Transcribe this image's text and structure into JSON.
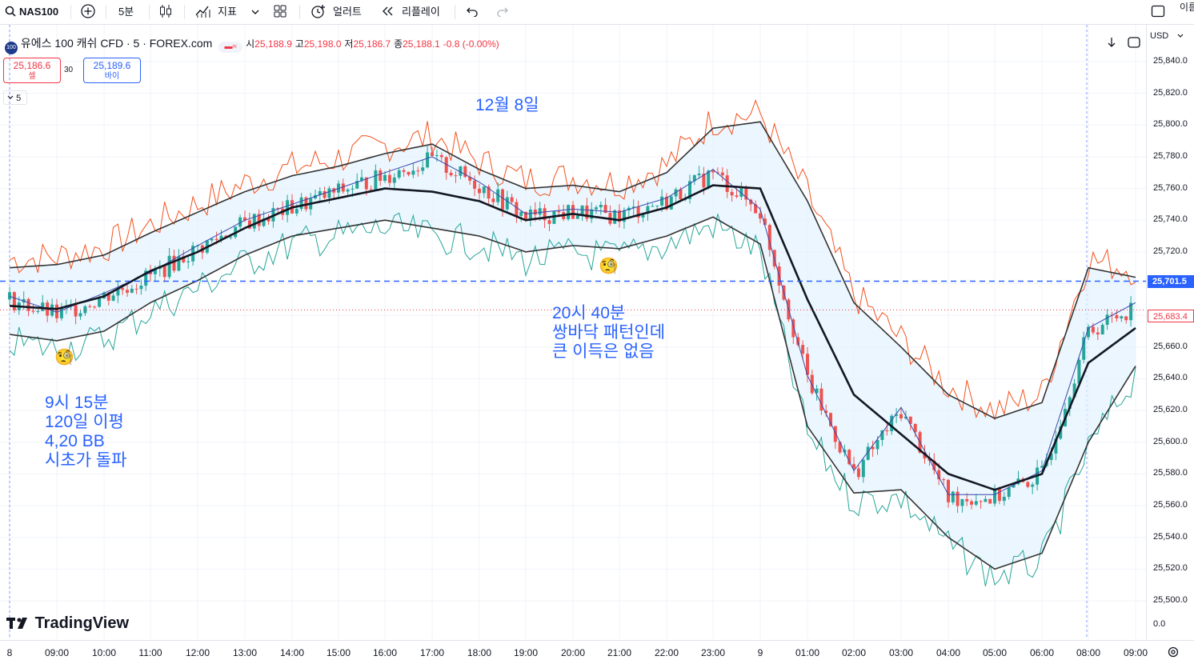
{
  "toolbar": {
    "symbol": "NAS100",
    "interval": "5분",
    "indicators_label": "지표",
    "alert_label": "얼러트",
    "replay_label": "리플레이",
    "right_cut_label": "이름"
  },
  "legend": {
    "title": "유에스 100 캐쉬 CFD · 5 · FOREX.com",
    "open_label": "시",
    "open": "25,188.9",
    "high_label": "고",
    "high": "25,198.0",
    "low_label": "저",
    "low": "25,186.7",
    "close_label": "종",
    "close": "25,188.1",
    "change": "-0.8 (-0.00%)",
    "sell_price": "25,186.6",
    "sell_label": "셀",
    "spread": "30",
    "buy_price": "25,189.6",
    "buy_label": "바이",
    "collapse_count": "5"
  },
  "price_axis": {
    "currency": "USD",
    "labels": [
      "25,840.0",
      "25,820.0",
      "25,800.0",
      "25,780.0",
      "25,760.0",
      "25,740.0",
      "25,720.0",
      "25,700.0",
      "25,680.0",
      "25,660.0",
      "25,640.0",
      "25,620.0",
      "25,600.0",
      "25,580.0",
      "25,560.0",
      "25,540.0",
      "25,520.0",
      "25,500.0",
      "0.0"
    ],
    "horizontal_line_badge": "25,701.5",
    "last_price_badge": "25,683.4"
  },
  "time_axis": {
    "labels": [
      "8",
      "09:00",
      "10:00",
      "11:00",
      "12:00",
      "13:00",
      "14:00",
      "15:00",
      "16:00",
      "17:00",
      "18:00",
      "19:00",
      "20:00",
      "21:00",
      "22:00",
      "23:00",
      "9",
      "01:00",
      "02:00",
      "03:00",
      "04:00",
      "05:00",
      "06:00",
      "08:00",
      "09:00"
    ]
  },
  "annotations": {
    "date_note": "12월 8일",
    "note_1": "9시 15분\n120일 이평\n4,20 BB\n시초가 돌파",
    "note_2": "20시 40분\n쌍바닥 패턴인데\n큰 이득은 없음"
  },
  "brand": "TradingView",
  "colors": {
    "up": "#26a69a",
    "down": "#ef5350",
    "accent": "#2962ff",
    "bb_fill": "#e3f2fd",
    "ma": "#131722"
  },
  "chart_data": {
    "type": "line",
    "title": "유에스 100 캐쉬 CFD · 5 · FOREX.com",
    "ylim": [
      25490,
      25850
    ],
    "x": [
      "08:00",
      "09:00",
      "10:00",
      "11:00",
      "12:00",
      "13:00",
      "14:00",
      "15:00",
      "16:00",
      "17:00",
      "18:00",
      "19:00",
      "20:00",
      "21:00",
      "22:00",
      "23:00",
      "00:00",
      "01:00",
      "02:00",
      "03:00",
      "04:00",
      "05:00",
      "06:00",
      "08:00",
      "09:00"
    ],
    "series": [
      {
        "values": [
          25690,
          25680,
          25692,
          25705,
          25722,
          25738,
          25748,
          25758,
          25768,
          25778,
          25762,
          25742,
          25745,
          25743,
          25752,
          25770,
          25745,
          25640,
          25580,
          25620,
          25565,
          25565,
          25580,
          25670,
          25686
        ]
      },
      {
        "values": [
          25686,
          25684,
          25692,
          25708,
          25720,
          25735,
          25748,
          25754,
          25760,
          25758,
          25752,
          25740,
          25744,
          25740,
          25748,
          25762,
          25760,
          25690,
          25630,
          25605,
          25580,
          25570,
          25580,
          25650,
          25672
        ]
      },
      {
        "values": [
          25710,
          25712,
          25718,
          25732,
          25745,
          25758,
          25768,
          25774,
          25782,
          25788,
          25772,
          25760,
          25762,
          25758,
          25770,
          25798,
          25802,
          25752,
          25688,
          25660,
          25630,
          25615,
          25625,
          25710,
          25704
        ]
      },
      {
        "values": [
          25668,
          25664,
          25670,
          25688,
          25702,
          25718,
          25730,
          25735,
          25740,
          25735,
          25730,
          25720,
          25724,
          25722,
          25730,
          25742,
          25725,
          25610,
          25568,
          25570,
          25540,
          25520,
          25530,
          25600,
          25648
        ]
      }
    ],
    "horizontal_line": 25701.5,
    "last_price": 25683.4
  }
}
